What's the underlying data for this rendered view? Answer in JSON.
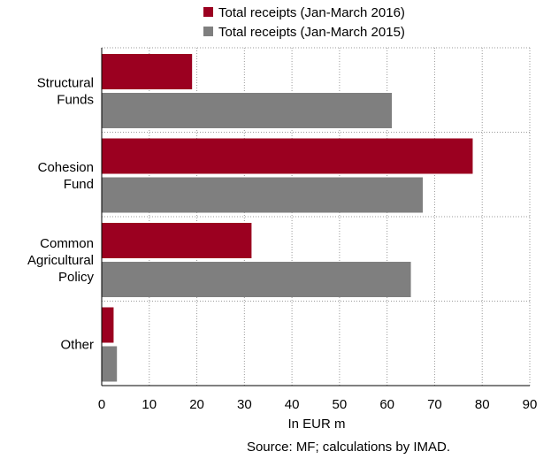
{
  "chart_data": {
    "type": "bar",
    "orientation": "horizontal",
    "categories": [
      [
        "Structural",
        "Funds"
      ],
      [
        "Cohesion",
        "Fund"
      ],
      [
        "Common",
        "Agricultural",
        "Policy"
      ],
      [
        "Other"
      ]
    ],
    "series": [
      {
        "name": "Total receipts (Jan-March 2016)",
        "color": "#9b0020",
        "values": [
          19,
          78,
          31.5,
          2.5
        ]
      },
      {
        "name": "Total receipts (Jan-March 2015)",
        "color": "#7f7f7f",
        "values": [
          61,
          67.5,
          65,
          3.2
        ]
      }
    ],
    "xlabel": "In EUR m",
    "xlim": [
      0,
      90
    ],
    "xticks": [
      0,
      10,
      20,
      30,
      40,
      50,
      60,
      70,
      80,
      90
    ],
    "grid": "vertical-dotted",
    "legend": "top",
    "source": "Source: MF; calculations by IMAD."
  }
}
